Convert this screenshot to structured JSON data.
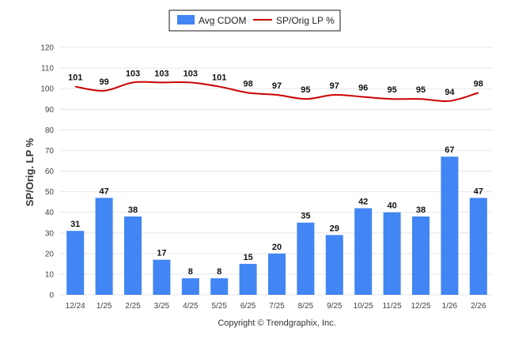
{
  "chart_data": {
    "type": "bar+line",
    "title": "",
    "categories": [
      "12/24",
      "1/25",
      "2/25",
      "3/25",
      "4/25",
      "5/25",
      "6/25",
      "7/25",
      "8/25",
      "9/25",
      "10/25",
      "11/25",
      "12/25",
      "1/26",
      "2/26"
    ],
    "series": [
      {
        "name": "Avg CDOM",
        "type": "bar",
        "color": "#4285f4",
        "values": [
          31,
          47,
          38,
          17,
          8,
          8,
          15,
          20,
          35,
          29,
          42,
          40,
          38,
          67,
          47
        ]
      },
      {
        "name": "SP/Orig LP %",
        "type": "line",
        "color": "#cc0000",
        "values": [
          101,
          99,
          103,
          103,
          103,
          101,
          98,
          97,
          95,
          97,
          96,
          95,
          95,
          94,
          98
        ]
      }
    ],
    "ylabel": "SP/Orig. LP %",
    "xlabel": "",
    "ylim": [
      0,
      120
    ],
    "yticks": [
      0,
      10,
      20,
      30,
      40,
      50,
      60,
      70,
      80,
      90,
      100,
      110,
      120
    ],
    "grid": true,
    "legend_position": "top-center"
  },
  "footer": {
    "copyright": "Copyright © Trendgraphix, Inc."
  }
}
